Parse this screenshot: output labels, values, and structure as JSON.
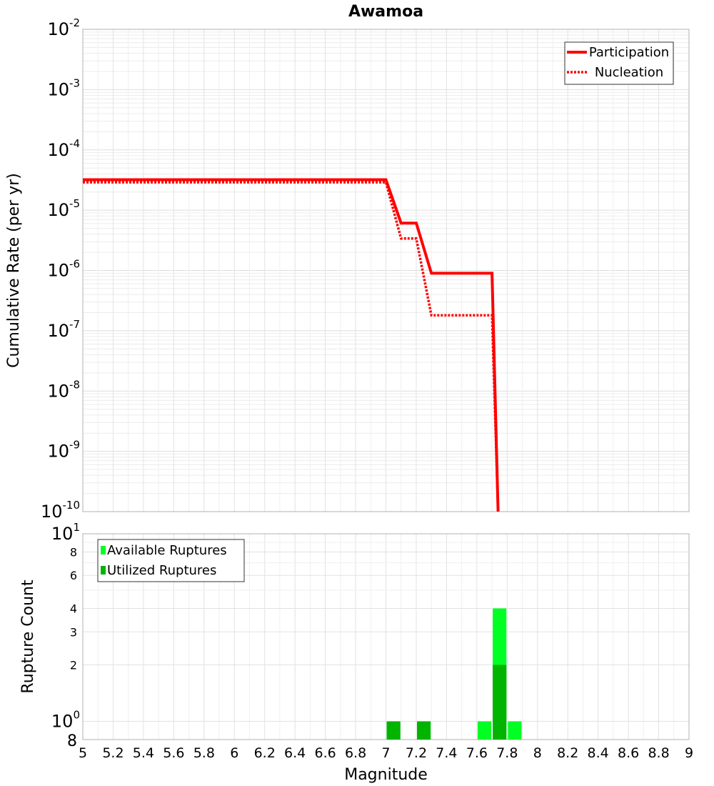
{
  "chart_data": [
    {
      "type": "line",
      "title": "Awamoa",
      "xlabel": "Magnitude",
      "ylabel": "Cumulative Rate (per yr)",
      "yscale": "log",
      "xlim": [
        5,
        9
      ],
      "ylim": [
        1e-10,
        0.01
      ],
      "ytick_labels": [
        {
          "base": "10",
          "exp": "-2"
        },
        {
          "base": "10",
          "exp": "-3"
        },
        {
          "base": "10",
          "exp": "-4"
        },
        {
          "base": "10",
          "exp": "-5"
        },
        {
          "base": "10",
          "exp": "-6"
        },
        {
          "base": "10",
          "exp": "-7"
        },
        {
          "base": "10",
          "exp": "-8"
        },
        {
          "base": "10",
          "exp": "-9"
        },
        {
          "base": "10",
          "exp": "-10"
        }
      ],
      "legend": {
        "position": "top-right",
        "entries": [
          "Participation",
          "Nucleation"
        ]
      },
      "series": [
        {
          "name": "Participation",
          "color": "#ff0000",
          "style": "solid",
          "x": [
            5.0,
            7.0,
            7.1,
            7.2,
            7.3,
            7.7,
            7.74,
            7.74
          ],
          "y": [
            3.2e-05,
            3.2e-05,
            6.1e-06,
            6.1e-06,
            9e-07,
            9e-07,
            1e-10,
            1e-10
          ]
        },
        {
          "name": "Nucleation",
          "color": "#ff0000",
          "style": "dotted",
          "x": [
            5.0,
            7.0,
            7.1,
            7.2,
            7.3,
            7.7,
            7.74
          ],
          "y": [
            2.9e-05,
            2.9e-05,
            3.4e-06,
            3.4e-06,
            1.8e-07,
            1.8e-07,
            1e-10
          ]
        }
      ]
    },
    {
      "type": "bar",
      "xlabel": "Magnitude",
      "ylabel": "Rupture Count",
      "yscale": "log",
      "xlim": [
        5,
        9
      ],
      "ylim": [
        0.8,
        10
      ],
      "x_ticks": [
        "5",
        "5.2",
        "5.4",
        "5.6",
        "5.8",
        "6",
        "6.2",
        "6.4",
        "6.6",
        "6.8",
        "7",
        "7.2",
        "7.4",
        "7.6",
        "7.8",
        "8",
        "8.2",
        "8.4",
        "8.6",
        "8.8",
        "9"
      ],
      "y_ticks": [
        {
          "value": 10,
          "base": "10",
          "exp": "1"
        },
        {
          "value": 8,
          "label": "8"
        },
        {
          "value": 6,
          "label": "6"
        },
        {
          "value": 4,
          "label": "4"
        },
        {
          "value": 3,
          "label": "3"
        },
        {
          "value": 2,
          "label": "2"
        },
        {
          "value": 1,
          "base": "10",
          "exp": "0"
        },
        {
          "value": 0.8,
          "label": "8"
        }
      ],
      "legend": {
        "position": "top-left",
        "entries": [
          "Available Ruptures",
          "Utilized Ruptures"
        ]
      },
      "series": [
        {
          "name": "Available Ruptures",
          "color": "#00ff22",
          "x": [
            7.05,
            7.25,
            7.65,
            7.75,
            7.85
          ],
          "values": [
            1,
            1,
            1,
            4,
            1
          ]
        },
        {
          "name": "Utilized Ruptures",
          "color": "#00b400",
          "x": [
            7.05,
            7.25,
            7.75
          ],
          "values": [
            1,
            1,
            2
          ]
        }
      ]
    }
  ]
}
